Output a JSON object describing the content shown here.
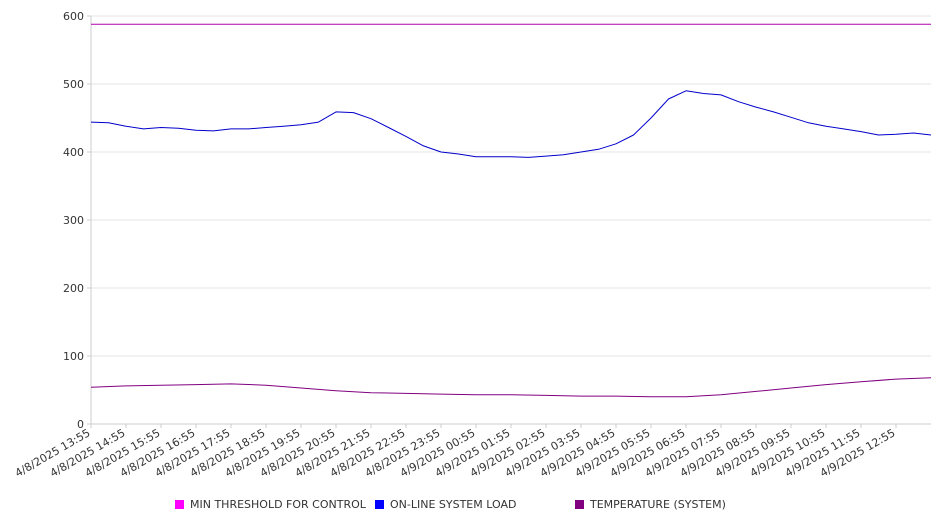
{
  "chart_data": {
    "type": "line",
    "title": "",
    "xlabel": "",
    "ylabel": "",
    "ylim": [
      0,
      600
    ],
    "y_ticks": [
      0,
      100,
      200,
      300,
      400,
      500,
      600
    ],
    "x_tick_labels": [
      "4/8/2025 13:55",
      "4/8/2025 14:55",
      "4/8/2025 15:55",
      "4/8/2025 16:55",
      "4/8/2025 17:55",
      "4/8/2025 18:55",
      "4/8/2025 19:55",
      "4/8/2025 20:55",
      "4/8/2025 21:55",
      "4/8/2025 22:55",
      "4/8/2025 23:55",
      "4/9/2025 00:55",
      "4/9/2025 01:55",
      "4/9/2025 02:55",
      "4/9/2025 03:55",
      "4/9/2025 04:55",
      "4/9/2025 05:55",
      "4/9/2025 06:55",
      "4/9/2025 07:55",
      "4/9/2025 08:55",
      "4/9/2025 09:55",
      "4/9/2025 10:55",
      "4/9/2025 11:55",
      "4/9/2025 12:55"
    ],
    "x_start": "4/8/2025 13:55",
    "x_end": "4/9/2025 13:55",
    "grid": "horizontal",
    "legend_position": "bottom",
    "series": [
      {
        "name": "MIN THRESHOLD FOR CONTROL",
        "color": "#b000b0",
        "legend_color": "#ff00ff",
        "x": [
          "4/8/2025 13:55",
          "4/9/2025 13:55"
        ],
        "values": [
          588,
          588
        ]
      },
      {
        "name": "ON-LINE SYSTEM LOAD",
        "color": "#0000cc",
        "legend_color": "#0000ff",
        "x": [
          "4/8/2025 13:55",
          "4/8/2025 14:25",
          "4/8/2025 14:55",
          "4/8/2025 15:25",
          "4/8/2025 15:55",
          "4/8/2025 16:25",
          "4/8/2025 16:55",
          "4/8/2025 17:25",
          "4/8/2025 17:55",
          "4/8/2025 18:25",
          "4/8/2025 18:55",
          "4/8/2025 19:25",
          "4/8/2025 19:55",
          "4/8/2025 20:25",
          "4/8/2025 20:55",
          "4/8/2025 21:25",
          "4/8/2025 21:55",
          "4/8/2025 22:25",
          "4/8/2025 22:55",
          "4/8/2025 23:25",
          "4/8/2025 23:55",
          "4/9/2025 00:25",
          "4/9/2025 00:55",
          "4/9/2025 01:25",
          "4/9/2025 01:55",
          "4/9/2025 02:25",
          "4/9/2025 02:55",
          "4/9/2025 03:25",
          "4/9/2025 03:55",
          "4/9/2025 04:25",
          "4/9/2025 04:55",
          "4/9/2025 05:25",
          "4/9/2025 05:55",
          "4/9/2025 06:25",
          "4/9/2025 06:55",
          "4/9/2025 07:25",
          "4/9/2025 07:55",
          "4/9/2025 08:25",
          "4/9/2025 08:55",
          "4/9/2025 09:25",
          "4/9/2025 09:55",
          "4/9/2025 10:25",
          "4/9/2025 10:55",
          "4/9/2025 11:25",
          "4/9/2025 11:55",
          "4/9/2025 12:25",
          "4/9/2025 12:55",
          "4/9/2025 13:25",
          "4/9/2025 13:55"
        ],
        "values": [
          444,
          443,
          438,
          434,
          436,
          435,
          432,
          431,
          434,
          434,
          436,
          438,
          440,
          444,
          459,
          458,
          449,
          436,
          423,
          409,
          400,
          397,
          393,
          393,
          393,
          392,
          394,
          396,
          400,
          404,
          412,
          425,
          450,
          478,
          490,
          486,
          484,
          474,
          466,
          459,
          451,
          443,
          438,
          434,
          430,
          425,
          426,
          428,
          425
        ]
      },
      {
        "name": "TEMPERATURE (SYSTEM)",
        "color": "#800080",
        "legend_color": "#800080",
        "x": [
          "4/8/2025 13:55",
          "4/8/2025 14:55",
          "4/8/2025 15:55",
          "4/8/2025 16:55",
          "4/8/2025 17:55",
          "4/8/2025 18:55",
          "4/8/2025 19:55",
          "4/8/2025 20:55",
          "4/8/2025 21:55",
          "4/8/2025 22:55",
          "4/8/2025 23:55",
          "4/9/2025 00:55",
          "4/9/2025 01:55",
          "4/9/2025 02:55",
          "4/9/2025 03:55",
          "4/9/2025 04:55",
          "4/9/2025 05:55",
          "4/9/2025 06:55",
          "4/9/2025 07:55",
          "4/9/2025 08:55",
          "4/9/2025 09:55",
          "4/9/2025 10:55",
          "4/9/2025 11:55",
          "4/9/2025 12:55",
          "4/9/2025 13:55"
        ],
        "values": [
          54,
          56,
          57,
          58,
          59,
          57,
          53,
          49,
          46,
          45,
          44,
          43,
          43,
          42,
          41,
          41,
          40,
          40,
          43,
          48,
          53,
          58,
          62,
          66,
          68
        ]
      }
    ]
  }
}
